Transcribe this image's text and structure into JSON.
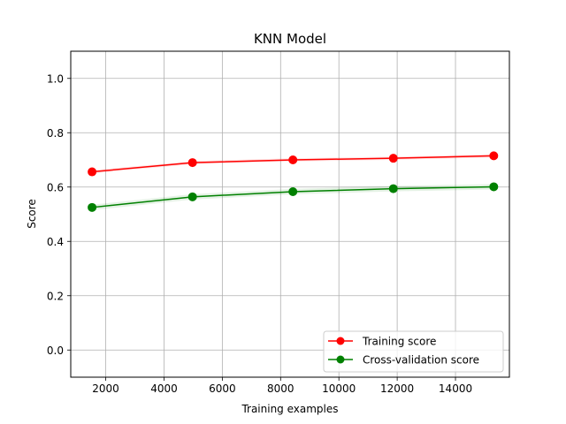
{
  "chart_data": {
    "type": "line",
    "title": "KNN Model",
    "xlabel": "Training examples",
    "ylabel": "Score",
    "xlim": [
      800,
      15850
    ],
    "ylim": [
      -0.1,
      1.1
    ],
    "xticks": [
      2000,
      4000,
      6000,
      8000,
      10000,
      12000,
      14000
    ],
    "yticks": [
      0.0,
      0.2,
      0.4,
      0.6,
      0.8,
      1.0
    ],
    "grid": true,
    "legend_position": "lower-right",
    "series": [
      {
        "name": "Training score",
        "color": "#ff0000",
        "x": [
          1531,
          4977,
          8422,
          11868,
          15313
        ],
        "y": [
          0.656,
          0.69,
          0.7,
          0.706,
          0.715
        ],
        "band": 0.006
      },
      {
        "name": "Cross-validation score",
        "color": "#008000",
        "x": [
          1531,
          4977,
          8422,
          11868,
          15313
        ],
        "y": [
          0.525,
          0.564,
          0.583,
          0.594,
          0.601
        ],
        "band": 0.01
      }
    ]
  }
}
